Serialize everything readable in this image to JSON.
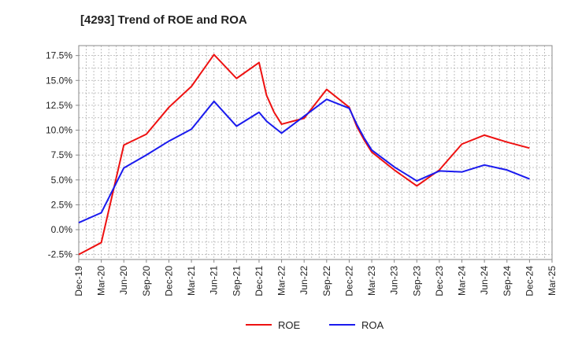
{
  "chart_data": {
    "type": "line",
    "title": "[4293]  Trend of ROE and ROA",
    "xlabel": "",
    "ylabel": "",
    "y_unit": "%",
    "ylim": [
      -3.0,
      18.5
    ],
    "y_ticks": [
      -2.5,
      0.0,
      2.5,
      5.0,
      7.5,
      10.0,
      12.5,
      15.0,
      17.5
    ],
    "y_tick_labels": [
      "-2.5%",
      "0.0%",
      "2.5%",
      "5.0%",
      "7.5%",
      "10.0%",
      "12.5%",
      "15.0%",
      "17.5%"
    ],
    "xlim": [
      "2019-12",
      "2025-03"
    ],
    "x_tick_labels": [
      "Dec-19",
      "Mar-20",
      "Jun-20",
      "Sep-20",
      "Dec-20",
      "Mar-21",
      "Jun-21",
      "Sep-21",
      "Dec-21",
      "Mar-22",
      "Jun-22",
      "Sep-22",
      "Dec-22",
      "Mar-23",
      "Jun-23",
      "Sep-23",
      "Dec-23",
      "Mar-24",
      "Jun-24",
      "Sep-24",
      "Dec-24",
      "Mar-25"
    ],
    "grid": true,
    "legend_position": "bottom-center",
    "series": [
      {
        "name": "ROE",
        "color": "#ee1111",
        "x": [
          "2019-12",
          "2020-03",
          "2020-06",
          "2020-09",
          "2020-12",
          "2021-03",
          "2021-06",
          "2021-09",
          "2021-12",
          "2022-01",
          "2022-02",
          "2022-03",
          "2022-06",
          "2022-09",
          "2022-12",
          "2023-01",
          "2023-02",
          "2023-03",
          "2023-06",
          "2023-09",
          "2023-12",
          "2024-03",
          "2024-06",
          "2024-09",
          "2024-12"
        ],
        "values": [
          -2.5,
          -1.3,
          8.5,
          9.6,
          12.3,
          14.4,
          17.6,
          15.2,
          16.8,
          13.5,
          11.8,
          10.6,
          11.2,
          14.1,
          12.3,
          10.4,
          9.0,
          7.8,
          6.0,
          4.4,
          6.0,
          8.6,
          9.5,
          8.8,
          8.2
        ]
      },
      {
        "name": "ROA",
        "color": "#1a1aee",
        "x": [
          "2019-12",
          "2020-03",
          "2020-06",
          "2020-09",
          "2020-12",
          "2021-03",
          "2021-06",
          "2021-09",
          "2021-12",
          "2022-01",
          "2022-02",
          "2022-03",
          "2022-06",
          "2022-09",
          "2022-12",
          "2023-01",
          "2023-02",
          "2023-03",
          "2023-06",
          "2023-09",
          "2023-12",
          "2024-03",
          "2024-06",
          "2024-09",
          "2024-12"
        ],
        "values": [
          0.7,
          1.7,
          6.2,
          7.5,
          8.9,
          10.1,
          12.9,
          10.4,
          11.8,
          10.9,
          10.3,
          9.7,
          11.4,
          13.1,
          12.2,
          10.6,
          9.2,
          8.0,
          6.3,
          4.9,
          5.9,
          5.8,
          6.5,
          6.0,
          5.1
        ]
      }
    ]
  }
}
